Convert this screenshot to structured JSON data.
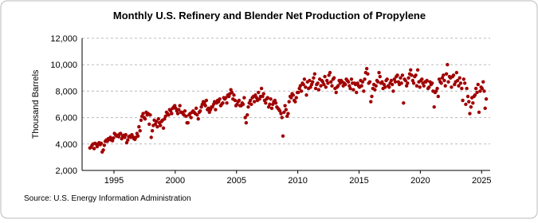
{
  "chart_data": {
    "type": "scatter",
    "title": "Monthly U.S. Refinery and Blender Net Production of Propylene",
    "y_label": "Thousand Barrels",
    "source": "Source: U.S. Energy Information Administration",
    "color": "#a00000",
    "grid": true,
    "xlim": [
      1992.4,
      2025.7
    ],
    "xticks": [
      1995,
      2000,
      2005,
      2010,
      2015,
      2020,
      2025
    ],
    "ylim": [
      2000,
      12000
    ],
    "yticks": [
      {
        "value": 2000,
        "label": "2,000"
      },
      {
        "value": 4000,
        "label": "4,000"
      },
      {
        "value": 6000,
        "label": "6,000"
      },
      {
        "value": 8000,
        "label": "8,000"
      },
      {
        "value": 10000,
        "label": "10,000"
      },
      {
        "value": 12000,
        "label": "12,000"
      }
    ],
    "x": [
      1993.04,
      1993.13,
      1993.21,
      1993.29,
      1993.38,
      1993.46,
      1993.54,
      1993.63,
      1993.71,
      1993.79,
      1993.88,
      1993.96,
      1994.04,
      1994.13,
      1994.21,
      1994.29,
      1994.38,
      1994.46,
      1994.54,
      1994.63,
      1994.71,
      1994.79,
      1994.88,
      1994.96,
      1995.04,
      1995.13,
      1995.21,
      1995.29,
      1995.38,
      1995.46,
      1995.54,
      1995.63,
      1995.71,
      1995.79,
      1995.88,
      1995.96,
      1996.04,
      1996.13,
      1996.21,
      1996.29,
      1996.38,
      1996.46,
      1996.54,
      1996.63,
      1996.71,
      1996.79,
      1996.88,
      1996.96,
      1997.04,
      1997.13,
      1997.21,
      1997.29,
      1997.38,
      1997.46,
      1997.54,
      1997.63,
      1997.71,
      1997.79,
      1997.88,
      1997.96,
      1998.04,
      1998.13,
      1998.21,
      1998.29,
      1998.38,
      1998.46,
      1998.54,
      1998.63,
      1998.71,
      1998.79,
      1998.88,
      1998.96,
      1999.04,
      1999.13,
      1999.21,
      1999.29,
      1999.38,
      1999.46,
      1999.54,
      1999.63,
      1999.71,
      1999.79,
      1999.88,
      1999.96,
      2000.04,
      2000.13,
      2000.21,
      2000.29,
      2000.38,
      2000.46,
      2000.54,
      2000.63,
      2000.71,
      2000.79,
      2000.88,
      2000.96,
      2001.04,
      2001.13,
      2001.21,
      2001.29,
      2001.38,
      2001.46,
      2001.54,
      2001.63,
      2001.71,
      2001.79,
      2001.88,
      2001.96,
      2002.04,
      2002.13,
      2002.21,
      2002.29,
      2002.38,
      2002.46,
      2002.54,
      2002.63,
      2002.71,
      2002.79,
      2002.88,
      2002.96,
      2003.04,
      2003.13,
      2003.21,
      2003.29,
      2003.38,
      2003.46,
      2003.54,
      2003.63,
      2003.71,
      2003.79,
      2003.88,
      2003.96,
      2004.04,
      2004.13,
      2004.21,
      2004.29,
      2004.38,
      2004.46,
      2004.54,
      2004.63,
      2004.71,
      2004.79,
      2004.88,
      2004.96,
      2005.04,
      2005.13,
      2005.21,
      2005.29,
      2005.38,
      2005.46,
      2005.54,
      2005.63,
      2005.71,
      2005.79,
      2005.88,
      2005.96,
      2006.04,
      2006.13,
      2006.21,
      2006.29,
      2006.38,
      2006.46,
      2006.54,
      2006.63,
      2006.71,
      2006.79,
      2006.88,
      2006.96,
      2007.04,
      2007.13,
      2007.21,
      2007.29,
      2007.38,
      2007.46,
      2007.54,
      2007.63,
      2007.71,
      2007.79,
      2007.88,
      2007.96,
      2008.04,
      2008.13,
      2008.21,
      2008.29,
      2008.38,
      2008.46,
      2008.54,
      2008.63,
      2008.71,
      2008.79,
      2008.88,
      2008.96,
      2009.04,
      2009.13,
      2009.21,
      2009.29,
      2009.38,
      2009.46,
      2009.54,
      2009.63,
      2009.71,
      2009.79,
      2009.88,
      2009.96,
      2010.04,
      2010.13,
      2010.21,
      2010.29,
      2010.38,
      2010.46,
      2010.54,
      2010.63,
      2010.71,
      2010.79,
      2010.88,
      2010.96,
      2011.04,
      2011.13,
      2011.21,
      2011.29,
      2011.38,
      2011.46,
      2011.54,
      2011.63,
      2011.71,
      2011.79,
      2011.88,
      2011.96,
      2012.04,
      2012.13,
      2012.21,
      2012.29,
      2012.38,
      2012.46,
      2012.54,
      2012.63,
      2012.71,
      2012.79,
      2012.88,
      2012.96,
      2013.04,
      2013.13,
      2013.21,
      2013.29,
      2013.38,
      2013.46,
      2013.54,
      2013.63,
      2013.71,
      2013.79,
      2013.88,
      2013.96,
      2014.04,
      2014.13,
      2014.21,
      2014.29,
      2014.38,
      2014.46,
      2014.54,
      2014.63,
      2014.71,
      2014.79,
      2014.88,
      2014.96,
      2015.04,
      2015.13,
      2015.21,
      2015.29,
      2015.38,
      2015.46,
      2015.54,
      2015.63,
      2015.71,
      2015.79,
      2015.88,
      2015.96,
      2016.04,
      2016.13,
      2016.21,
      2016.29,
      2016.38,
      2016.46,
      2016.54,
      2016.63,
      2016.71,
      2016.79,
      2016.88,
      2016.96,
      2017.04,
      2017.13,
      2017.21,
      2017.29,
      2017.38,
      2017.46,
      2017.54,
      2017.63,
      2017.71,
      2017.79,
      2017.88,
      2017.96,
      2018.04,
      2018.13,
      2018.21,
      2018.29,
      2018.38,
      2018.46,
      2018.54,
      2018.63,
      2018.71,
      2018.79,
      2018.88,
      2018.96,
      2019.04,
      2019.13,
      2019.21,
      2019.29,
      2019.38,
      2019.46,
      2019.54,
      2019.63,
      2019.71,
      2019.79,
      2019.88,
      2019.96,
      2020.04,
      2020.13,
      2020.21,
      2020.29,
      2020.38,
      2020.46,
      2020.54,
      2020.63,
      2020.71,
      2020.79,
      2020.88,
      2020.96,
      2021.04,
      2021.13,
      2021.21,
      2021.29,
      2021.38,
      2021.46,
      2021.54,
      2021.63,
      2021.71,
      2021.79,
      2021.88,
      2021.96,
      2022.04,
      2022.13,
      2022.21,
      2022.29,
      2022.38,
      2022.46,
      2022.54,
      2022.63,
      2022.71,
      2022.79,
      2022.88,
      2022.96,
      2023.04,
      2023.13,
      2023.21,
      2023.29,
      2023.38,
      2023.46,
      2023.54,
      2023.63,
      2023.71,
      2023.79,
      2023.88,
      2023.96,
      2024.04,
      2024.13,
      2024.21,
      2024.29,
      2024.38,
      2024.46,
      2024.54,
      2024.63,
      2024.71,
      2024.79,
      2024.88,
      2024.96,
      2025.04,
      2025.13,
      2025.21,
      2025.29,
      2025.38
    ],
    "values": [
      3700,
      3750,
      3900,
      4000,
      3650,
      4050,
      4000,
      3800,
      4000,
      4100,
      3950,
      4050,
      3400,
      3550,
      3900,
      4200,
      4300,
      4200,
      4400,
      4350,
      4500,
      4300,
      4250,
      4450,
      4800,
      4700,
      4600,
      4650,
      4550,
      4750,
      4800,
      4400,
      4600,
      4650,
      4500,
      4700,
      4100,
      4300,
      4550,
      4600,
      4500,
      4700,
      4550,
      4400,
      4350,
      4500,
      4800,
      4600,
      5300,
      5000,
      5800,
      6100,
      6300,
      6000,
      5900,
      6400,
      6200,
      6300,
      5500,
      6200,
      4500,
      5000,
      5400,
      5800,
      5500,
      5700,
      5300,
      5900,
      5600,
      5400,
      5700,
      5800,
      5200,
      5900,
      6100,
      6400,
      6300,
      6200,
      6600,
      6500,
      6300,
      6700,
      6800,
      6900,
      6700,
      6500,
      6300,
      6600,
      6900,
      6400,
      6400,
      6300,
      6200,
      6500,
      6100,
      5600,
      5600,
      6200,
      6300,
      6000,
      6400,
      6500,
      6400,
      6300,
      6700,
      6200,
      5900,
      6400,
      6500,
      6800,
      7000,
      7200,
      7100,
      6900,
      7300,
      6600,
      6700,
      6400,
      6600,
      6800,
      6800,
      7000,
      7200,
      6600,
      7100,
      7300,
      7200,
      7400,
      6900,
      7000,
      7100,
      7500,
      7400,
      7500,
      7100,
      7700,
      7600,
      7800,
      8100,
      7900,
      7400,
      7700,
      7300,
      6900,
      7000,
      7200,
      7300,
      6900,
      6900,
      7100,
      7000,
      7500,
      6000,
      5600,
      6200,
      6800,
      7100,
      7300,
      7000,
      7500,
      7600,
      7200,
      7700,
      7500,
      7300,
      7900,
      7400,
      7600,
      8200,
      7600,
      7800,
      7300,
      7100,
      7400,
      7500,
      6800,
      7000,
      7400,
      6700,
      7000,
      7200,
      7300,
      7100,
      6800,
      6700,
      6600,
      6500,
      6300,
      6000,
      4600,
      6400,
      6900,
      6600,
      6100,
      6300,
      7200,
      7600,
      7500,
      7800,
      7700,
      7300,
      7200,
      7500,
      7900,
      7900,
      8200,
      8400,
      8000,
      8600,
      8500,
      8900,
      8300,
      7700,
      8700,
      8200,
      8800,
      8300,
      8500,
      8700,
      9000,
      9300,
      8200,
      8500,
      8600,
      8100,
      8900,
      8400,
      8800,
      8700,
      8500,
      9100,
      8300,
      8800,
      8600,
      9200,
      9400,
      8700,
      8400,
      8900,
      9000,
      8200,
      7900,
      8300,
      8400,
      8800,
      8600,
      8800,
      8700,
      8400,
      8600,
      8500,
      8900,
      8800,
      8700,
      8400,
      8200,
      8900,
      8600,
      8100,
      8600,
      8500,
      7900,
      8600,
      8400,
      8300,
      8800,
      8400,
      8700,
      8000,
      8900,
      9400,
      9700,
      9300,
      8600,
      8700,
      7200,
      7600,
      8200,
      8500,
      8100,
      8400,
      8800,
      8700,
      9400,
      9100,
      8600,
      8700,
      8200,
      8500,
      8300,
      8800,
      8900,
      8400,
      8300,
      8600,
      8800,
      8500,
      8000,
      8900,
      8700,
      9100,
      9200,
      8700,
      8500,
      9000,
      8600,
      9200,
      7100,
      8900,
      8800,
      8400,
      8600,
      9000,
      9300,
      9600,
      9200,
      8800,
      8600,
      9100,
      9200,
      8400,
      9600,
      8700,
      8300,
      8800,
      8900,
      8600,
      8400,
      8700,
      8700,
      8800,
      8200,
      8300,
      8700,
      8500,
      8600,
      8000,
      6800,
      7900,
      8000,
      8200,
      7600,
      8900,
      8700,
      8600,
      9000,
      9200,
      8800,
      8400,
      9300,
      10000,
      8700,
      9100,
      9000,
      8300,
      9100,
      9200,
      8500,
      8700,
      9400,
      8800,
      8400,
      9000,
      8600,
      8200,
      7300,
      8900,
      8600,
      7000,
      8200,
      7600,
      7200,
      6300,
      6800,
      7500,
      7100,
      7600,
      7700,
      8200,
      7900,
      8500,
      6400,
      8000,
      8300,
      8200,
      8700,
      8000,
      6700,
      7400
    ]
  }
}
